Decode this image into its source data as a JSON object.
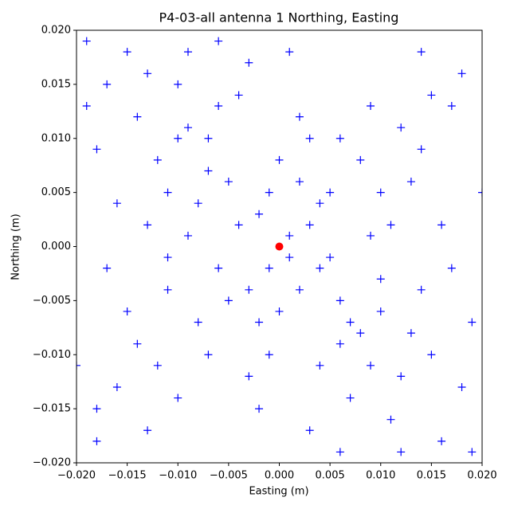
{
  "chart_data": {
    "type": "scatter",
    "title": "P4-03-all antenna 1 Northing, Easting",
    "x_label": "Easting (m)",
    "y_label": "Northing (m)",
    "xlim": [
      -0.02,
      0.02
    ],
    "ylim": [
      -0.02,
      0.02
    ],
    "xticks": [
      {
        "value": -0.02,
        "label": "−0.020"
      },
      {
        "value": -0.015,
        "label": "−0.015"
      },
      {
        "value": -0.01,
        "label": "−0.010"
      },
      {
        "value": -0.005,
        "label": "−0.005"
      },
      {
        "value": 0,
        "label": "0.000"
      },
      {
        "value": 0.005,
        "label": "0.005"
      },
      {
        "value": 0.01,
        "label": "0.010"
      },
      {
        "value": 0.015,
        "label": "0.015"
      },
      {
        "value": 0.02,
        "label": "0.020"
      }
    ],
    "yticks": [
      {
        "value": -0.02,
        "label": "−0.020"
      },
      {
        "value": -0.015,
        "label": "−0.015"
      },
      {
        "value": -0.01,
        "label": "−0.010"
      },
      {
        "value": -0.005,
        "label": "−0.005"
      },
      {
        "value": 0,
        "label": "0.000"
      },
      {
        "value": 0.005,
        "label": "0.005"
      },
      {
        "value": 0.01,
        "label": "0.010"
      },
      {
        "value": 0.015,
        "label": "0.015"
      },
      {
        "value": 0.02,
        "label": "0.020"
      }
    ],
    "grid": false,
    "series": [
      {
        "color": "#0000ff",
        "marker": "+",
        "x": [
          -0.002,
          0.001,
          0.004,
          -0.005,
          0,
          0.006,
          -0.008,
          0.003,
          -0.003,
          0.008,
          -0.01,
          0.01,
          -0.006,
          0.002,
          -0.001,
          0.012,
          -0.012,
          0.005,
          -0.004,
          0.007,
          -0.014,
          0.014,
          -0.007,
          0.009,
          -0.011,
          0.011,
          -0.013,
          0.004,
          -0.009,
          0.015,
          -0.016,
          0.016,
          -0.003,
          0.003,
          -0.017,
          0.017,
          -0.015,
          0.013,
          -0.018,
          0.018,
          -0.019,
          0.019,
          -0.002,
          0.001,
          -0.011,
          0.01,
          -0.006,
          0.006,
          -0.008,
          0.008,
          0.012,
          -0.012,
          0.015,
          -0.016,
          0.018,
          -0.018,
          0.009,
          -0.01,
          0.014,
          -0.014,
          -0.004,
          0.002,
          -0.001,
          0.005,
          -0.007,
          0.007,
          -0.005,
          0.004,
          0,
          -0.009,
          0.011,
          -0.013,
          0.013,
          -0.01,
          0.006,
          -0.006,
          0.016,
          -0.017,
          0.019,
          -0.019,
          0.012,
          -0.015,
          0.02,
          -0.02,
          0.017,
          -0.018,
          0.014,
          -0.013,
          0.003,
          -0.003,
          0.001,
          -0.001,
          0.002,
          -0.002,
          0.009,
          -0.009,
          0.006,
          -0.007,
          0.01,
          -0.011
        ],
        "values": [
          0.003,
          -0.001,
          -0.002,
          0.006,
          0.008,
          -0.005,
          0.004,
          0.002,
          -0.004,
          -0.008,
          0.01,
          -0.006,
          -0.002,
          0.012,
          -0.01,
          -0.012,
          0.008,
          0.005,
          0.014,
          -0.014,
          0.012,
          -0.004,
          0.01,
          0.001,
          -0.001,
          -0.016,
          0.016,
          -0.011,
          0.018,
          -0.01,
          0.004,
          -0.018,
          0.017,
          -0.017,
          0.015,
          -0.002,
          -0.006,
          0.006,
          0.009,
          -0.013,
          0.019,
          -0.007,
          -0.015,
          0.018,
          0.005,
          -0.003,
          0.013,
          -0.009,
          -0.007,
          0.008,
          0.011,
          -0.011,
          0.014,
          -0.013,
          0.016,
          -0.018,
          0.013,
          -0.014,
          0.009,
          -0.009,
          0.002,
          -0.004,
          0.005,
          -0.001,
          0.007,
          -0.007,
          -0.005,
          0.004,
          -0.006,
          0.001,
          0.002,
          0.002,
          -0.008,
          0.015,
          -0.019,
          0.019,
          0.002,
          -0.002,
          -0.019,
          0.013,
          -0.019,
          0.018,
          0.005,
          -0.011,
          0.013,
          -0.015,
          0.018,
          -0.017,
          0.01,
          -0.012,
          0.001,
          -0.002,
          0.006,
          -0.007,
          -0.011,
          0.011,
          0.01,
          -0.01,
          0.005,
          -0.004
        ]
      },
      {
        "color": "#ff0000",
        "marker": "o",
        "x": [
          0
        ],
        "values": [
          0
        ]
      }
    ]
  }
}
